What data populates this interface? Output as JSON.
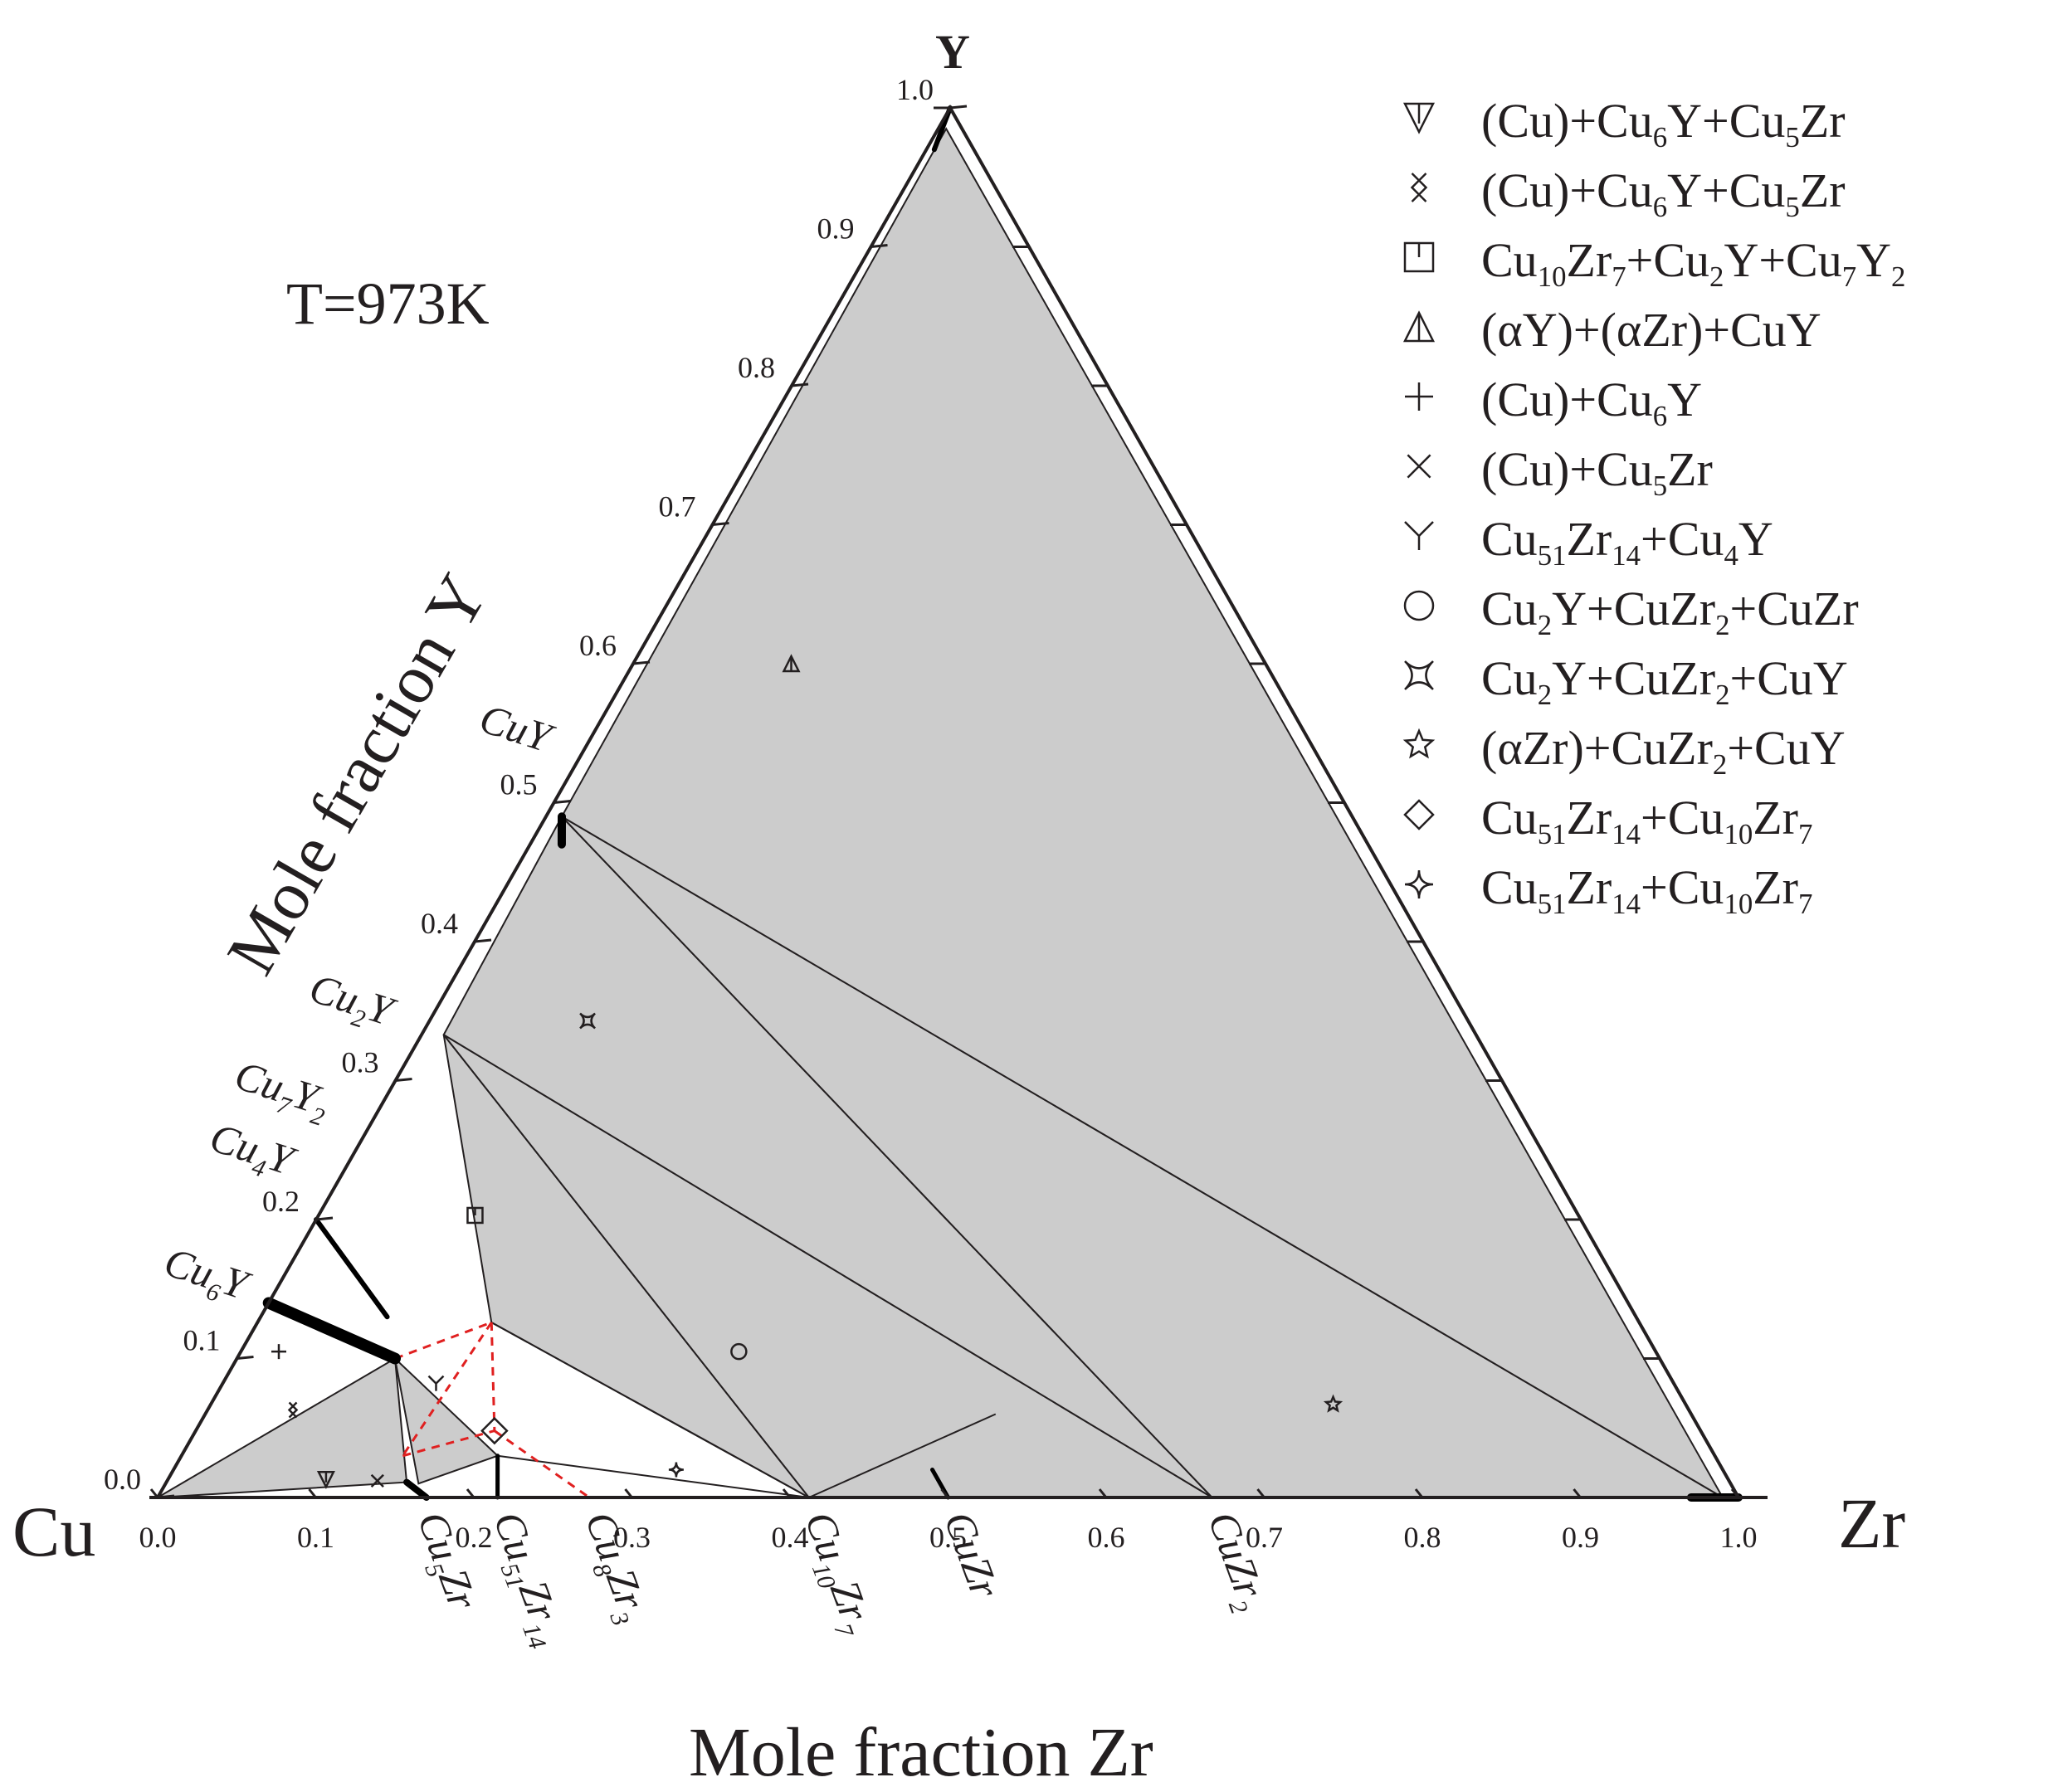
{
  "chart_data": {
    "type": "ternary",
    "components": {
      "left": "Cu",
      "right": "Zr",
      "top": "Y"
    },
    "temperature_label": "T=973K",
    "axis_titles": {
      "bottom": "Mole fraction Zr",
      "left": "Mole fraction Y"
    },
    "ticks": [
      "0.0",
      "0.1",
      "0.2",
      "0.3",
      "0.4",
      "0.5",
      "0.6",
      "0.7",
      "0.8",
      "0.9",
      "1.0"
    ],
    "compounds_left_edge": [
      {
        "label": "Cu",
        "sub": "6",
        "label2": "Y",
        "y": 0.14
      },
      {
        "label": "Cu",
        "sub": "4",
        "label2": "Y",
        "y": 0.2
      },
      {
        "label": "Cu",
        "sub": "7",
        "label2": "Y",
        "sub2": "2",
        "y": 0.222
      },
      {
        "label": "Cu",
        "sub": "2",
        "label2": "Y",
        "y": 0.333
      },
      {
        "label": "Cu",
        "sub": "",
        "label2": "Y",
        "y": 0.5
      }
    ],
    "compounds_bottom_edge": [
      {
        "parts": [
          [
            "Cu",
            ""
          ],
          [
            "5",
            ""
          ],
          [
            "Zr",
            ""
          ]
        ],
        "text": "Cu5Zr",
        "z": 0.167
      },
      {
        "text": "Cu51Zr14",
        "z": 0.215
      },
      {
        "text": "Cu8Zr3",
        "z": 0.273
      },
      {
        "text": "Cu10Zr7",
        "z": 0.412
      },
      {
        "text": "CuZr",
        "z": 0.5
      },
      {
        "text": "CuZr2",
        "z": 0.667
      }
    ],
    "three_phase_regions": [
      {
        "vertices": [
          [
            0,
            0
          ],
          [
            0.152,
            0.011
          ],
          [
            0.1,
            0.1
          ]
        ]
      },
      {
        "vertices": [
          [
            0.16,
            0.01
          ],
          [
            0.1,
            0.1
          ],
          [
            0.2,
            0.03
          ]
        ]
      },
      {
        "vertices": [
          [
            0.148,
            0.126
          ],
          [
            0.412,
            0
          ],
          [
            0.014,
            0.333
          ]
        ]
      },
      {
        "vertices": [
          [
            0.412,
            0
          ],
          [
            0.667,
            0
          ],
          [
            0.014,
            0.333
          ]
        ]
      },
      {
        "vertices": [
          [
            0.014,
            0.333
          ],
          [
            0.667,
            0
          ],
          [
            0.01,
            0.49
          ]
        ]
      },
      {
        "vertices": [
          [
            0.667,
            0
          ],
          [
            0.99,
            0
          ],
          [
            0.01,
            0.49
          ]
        ]
      },
      {
        "vertices": [
          [
            0.01,
            0.49
          ],
          [
            0.99,
            0
          ],
          [
            0.005,
            0.985
          ]
        ]
      }
    ],
    "legend": [
      {
        "symbol": "triangle-down-bar",
        "label": "(Cu)+Cu6Y+Cu5Zr"
      },
      {
        "symbol": "double-x",
        "label": "(Cu)+Cu6Y+Cu5Zr"
      },
      {
        "symbol": "square-bar",
        "label": "Cu10Zr7+Cu2Y+Cu7Y2"
      },
      {
        "symbol": "triangle-up-bar",
        "label": "(αY)+(αZr)+CuY"
      },
      {
        "symbol": "plus",
        "label": "(Cu)+Cu6Y"
      },
      {
        "symbol": "x",
        "label": "(Cu)+Cu5Zr"
      },
      {
        "symbol": "y",
        "label": "Cu51Zr14+Cu4Y"
      },
      {
        "symbol": "circle",
        "label": "Cu2Y+CuZr2+CuZr"
      },
      {
        "symbol": "star4-square",
        "label": "Cu2Y+CuZr2+CuY"
      },
      {
        "symbol": "star5",
        "label": "(αZr)+CuZr2+CuY"
      },
      {
        "symbol": "diamond",
        "label": "Cu51Zr14+Cu10Zr7"
      },
      {
        "symbol": "star4",
        "label": "Cu51Zr14+Cu10Zr7"
      }
    ],
    "sample_points": [
      {
        "symbol": "triangle-down-bar",
        "zr": 0.1,
        "y": 0.013
      },
      {
        "symbol": "double-x",
        "zr": 0.054,
        "y": 0.063
      },
      {
        "symbol": "square-bar",
        "zr": 0.099,
        "y": 0.203
      },
      {
        "symbol": "triangle-up-bar",
        "zr": 0.1,
        "y": 0.6
      },
      {
        "symbol": "plus",
        "zr": 0.024,
        "y": 0.105
      },
      {
        "symbol": "x",
        "zr": 0.133,
        "y": 0.012
      },
      {
        "symbol": "y",
        "zr": 0.135,
        "y": 0.082
      },
      {
        "symbol": "circle",
        "zr": 0.315,
        "y": 0.105
      },
      {
        "symbol": "star4-square",
        "zr": 0.1,
        "y": 0.343
      },
      {
        "symbol": "star5",
        "zr": 0.71,
        "y": 0.067
      },
      {
        "symbol": "diamond",
        "zr": 0.189,
        "y": 0.048
      },
      {
        "symbol": "star4",
        "zr": 0.318,
        "y": 0.02
      }
    ]
  }
}
